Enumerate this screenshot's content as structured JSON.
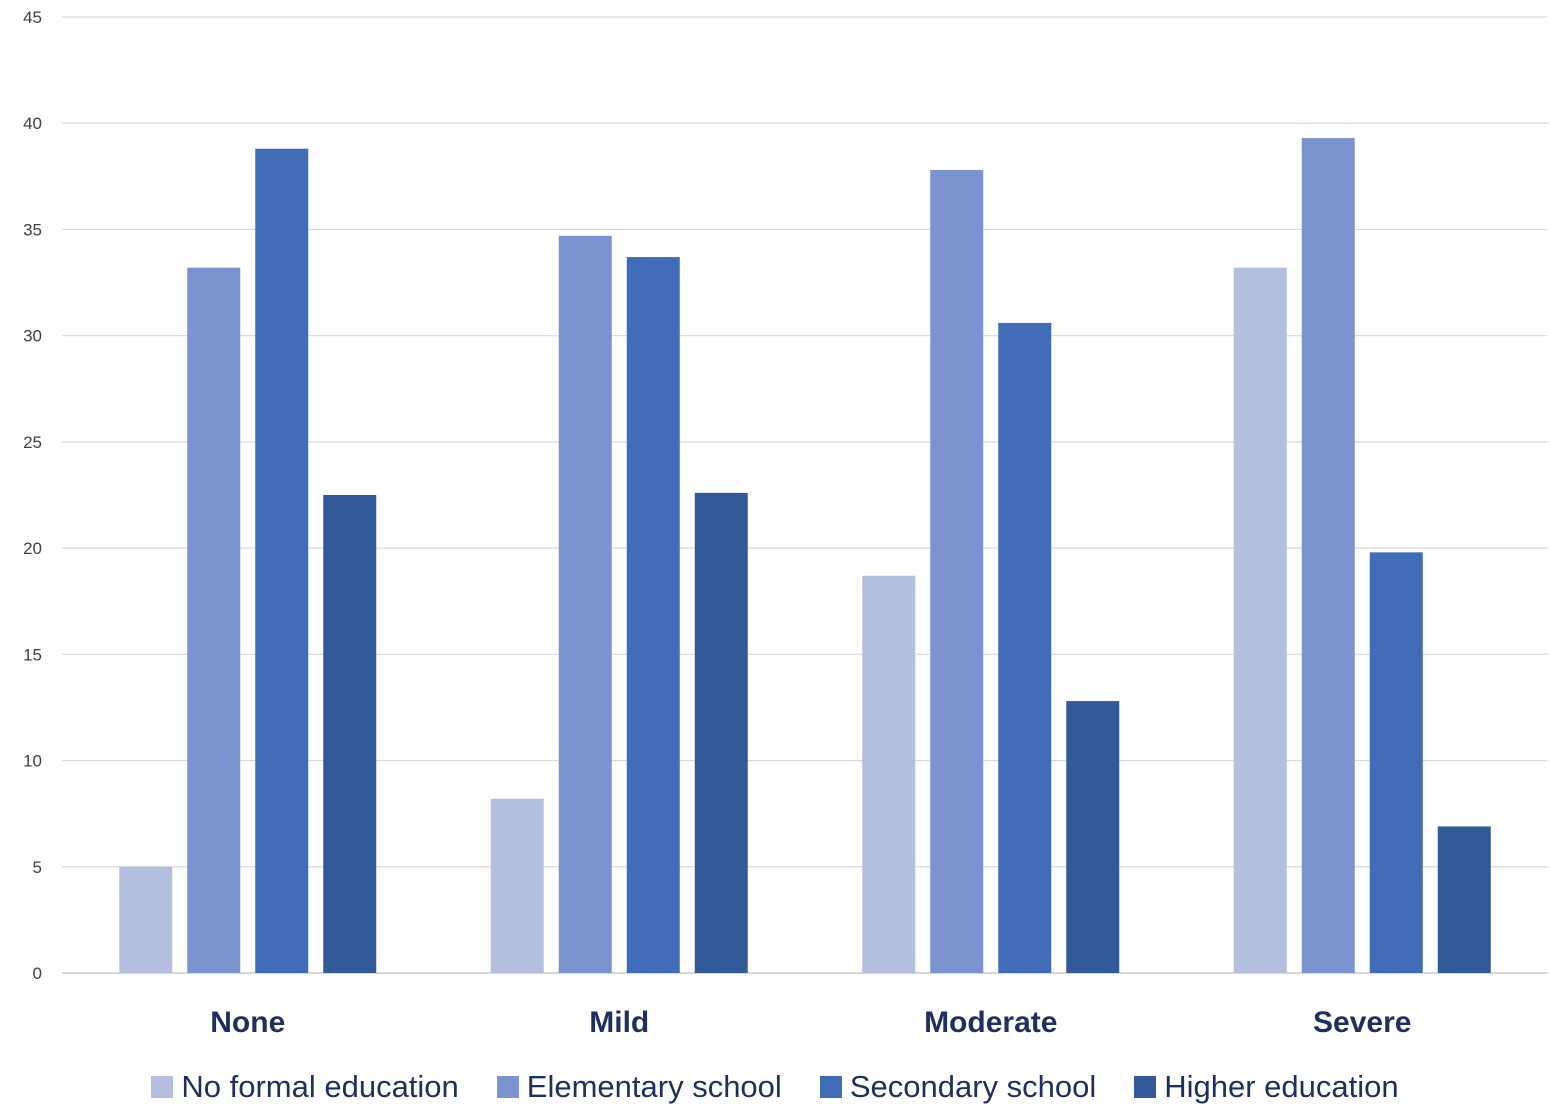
{
  "chart_data": {
    "type": "bar",
    "categories": [
      "None",
      "Mild",
      "Moderate",
      "Severe"
    ],
    "series": [
      {
        "name": "No formal education",
        "color": "#b4bfdf",
        "values": [
          5.0,
          8.2,
          18.7,
          33.2
        ]
      },
      {
        "name": "Elementary school",
        "color": "#7b93cf",
        "values": [
          33.2,
          34.7,
          37.8,
          39.3
        ]
      },
      {
        "name": "Secondary school",
        "color": "#416cb8",
        "values": [
          38.8,
          33.7,
          30.6,
          19.8
        ]
      },
      {
        "name": "Higher education",
        "color": "#335a98",
        "values": [
          22.5,
          22.6,
          12.8,
          6.9
        ]
      }
    ],
    "ylim": [
      0,
      45
    ],
    "yticks": [
      0,
      5,
      10,
      15,
      20,
      25,
      30,
      35,
      40,
      45
    ],
    "grid": true,
    "legend_position": "bottom"
  }
}
